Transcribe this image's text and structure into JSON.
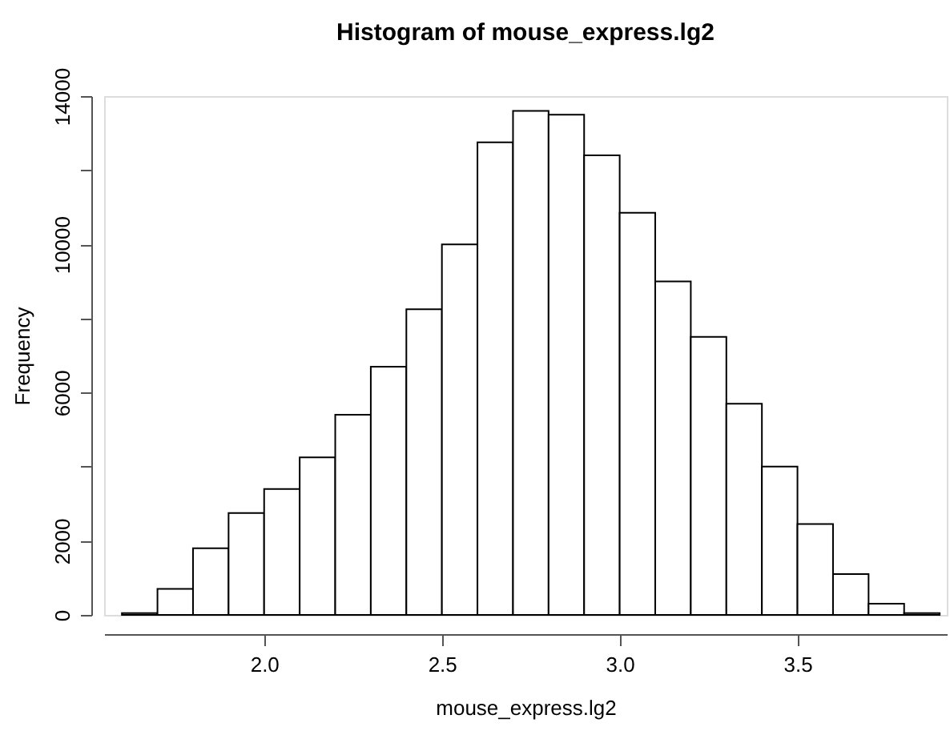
{
  "chart_data": {
    "type": "histogram",
    "title": "Histogram of mouse_express.lg2",
    "xlabel": "mouse_express.lg2",
    "ylabel": "Frequency",
    "bins": [
      1.6,
      1.7,
      1.8,
      1.9,
      2.0,
      2.1,
      2.2,
      2.3,
      2.4,
      2.5,
      2.6,
      2.7,
      2.8,
      2.9,
      3.0,
      3.1,
      3.2,
      3.3,
      3.4,
      3.5,
      3.6,
      3.7,
      3.8,
      3.9
    ],
    "values": [
      50,
      700,
      1800,
      2750,
      3400,
      4250,
      5400,
      6700,
      8250,
      10000,
      12750,
      13600,
      13500,
      12400,
      10850,
      9000,
      7500,
      5700,
      4000,
      2450,
      1100,
      300,
      50
    ],
    "color": "#ffffff",
    "xlim": [
      1.55,
      3.92
    ],
    "xticks": [
      {
        "value": 2,
        "label": "2.0"
      },
      2.5,
      {
        "value": 3,
        "label": "3.0"
      },
      3.5
    ],
    "ylim": [
      0,
      14000
    ],
    "yticks": [
      0,
      2000,
      6000,
      10000,
      14000,
      {
        "value": 4000,
        "label": null
      },
      {
        "value": 8000,
        "label": null
      },
      {
        "value": 12000,
        "label": null
      }
    ],
    "grid": false
  }
}
